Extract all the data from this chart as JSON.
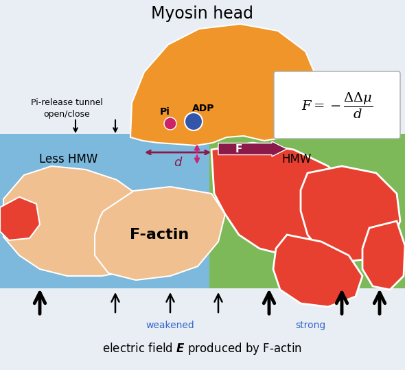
{
  "bg_color": "#e8eef4",
  "colors": {
    "myosin_orange": "#f0952a",
    "water_blue": "#6ab0d8",
    "actin_peach": "#f0c090",
    "actin_red": "#e84030",
    "green_bg": "#7dba4a",
    "pi_dot": "#cc2266",
    "adp_dot": "#3355aa",
    "tunnel_dashed": "#f0952a",
    "d_arrow": "#8b1a4a",
    "F_arrow": "#8b1a4a",
    "vertical_arrows": "#cc2277",
    "down_small": "#222222",
    "up_large": "#111111"
  },
  "title": "Myosin head",
  "pi_label": "Pi",
  "adp_label": "ADP",
  "less_hmw": "Less HMW",
  "hmw": "HMW",
  "f_actin": "F-actin",
  "pi_release": "Pi-release tunnel\nopen/close",
  "weakened": "weakened",
  "strong": "strong",
  "formula_text": "$F = -\\dfrac{\\Delta\\Delta\\mu}{d}$"
}
